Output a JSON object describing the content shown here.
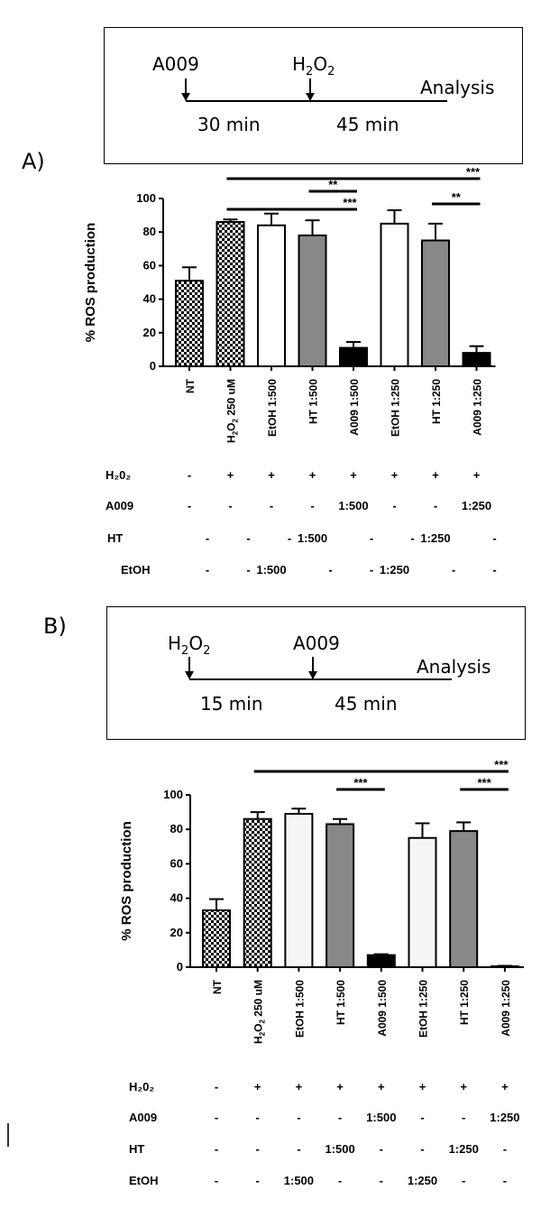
{
  "panels": [
    {
      "letter": "A)",
      "timeline": {
        "first_agent": "A009",
        "second_agent_base": "H",
        "second_agent_sub": "2",
        "second_agent_mid": "O",
        "second_agent_sub2": "2",
        "interval1": "30 min",
        "interval2": "45 min",
        "end_label": "Analysis"
      },
      "chart_data": {
        "type": "bar",
        "ylabel": "% ROS production",
        "ylim": [
          0,
          100
        ],
        "yticks": [
          0,
          20,
          40,
          60,
          80,
          100
        ],
        "categories": [
          "NT",
          "H2O2 250 uM",
          "EtOH 1:500",
          "HT 1:500",
          "A009 1:500",
          "EtOH 1:250",
          "HT 1:250",
          "A009 1:250"
        ],
        "values": [
          51,
          86,
          84,
          78,
          11,
          85,
          75,
          8
        ],
        "errors": [
          8,
          1.5,
          7,
          9,
          3.5,
          8,
          10,
          4
        ],
        "fills": [
          "check",
          "check",
          "#ffffff",
          "#888888",
          "#000000",
          "#ffffff",
          "#888888",
          "#000000"
        ],
        "significance": [
          {
            "from": 1,
            "to": 7,
            "label": "***"
          },
          {
            "from": 3,
            "to": 4,
            "label": "**"
          },
          {
            "from": 1,
            "to": 4,
            "label": "***"
          },
          {
            "from": 6,
            "to": 7,
            "label": "**"
          }
        ]
      },
      "conditions": [
        {
          "label": "H₂0₂",
          "values": [
            "-",
            "+",
            "+",
            "+",
            "+",
            "+",
            "+",
            "+"
          ]
        },
        {
          "label": "A009",
          "values": [
            "-",
            "-",
            "-",
            "-",
            "1:500",
            "-",
            "-",
            "1:250"
          ]
        },
        {
          "label": "HT",
          "values": [
            "-",
            "-",
            "-",
            "1:500",
            "-",
            "-",
            "1:250",
            "-"
          ]
        },
        {
          "label": "EtOH",
          "values": [
            "-",
            "-",
            "1:500",
            "-",
            "-",
            "1:250",
            "-",
            "-"
          ]
        }
      ]
    },
    {
      "letter": "B)",
      "timeline": {
        "first_agent_base": "H",
        "first_agent_sub": "2",
        "first_agent_mid": "O",
        "first_agent_sub2": "2",
        "second_agent": "A009",
        "interval1": "15 min",
        "interval2": "45 min",
        "end_label": "Analysis"
      },
      "chart_data": {
        "type": "bar",
        "ylabel": "% ROS production",
        "ylim": [
          0,
          100
        ],
        "yticks": [
          0,
          20,
          40,
          60,
          80,
          100
        ],
        "categories": [
          "NT",
          "H2O2 250 uM",
          "EtOH 1:500",
          "HT 1:500",
          "A009 1:500",
          "EtOH 1:250",
          "HT 1:250",
          "A009 1:250"
        ],
        "values": [
          33,
          86,
          89,
          83,
          7,
          75,
          79,
          0.5
        ],
        "errors": [
          6.5,
          4,
          3,
          3,
          0.5,
          8.5,
          5,
          0.3
        ],
        "fills": [
          "check",
          "check",
          "#f5f5f5",
          "#888888",
          "#000000",
          "#f5f5f5",
          "#888888",
          "#000000"
        ],
        "significance": [
          {
            "from": 1,
            "to": 7,
            "label": "***"
          },
          {
            "from": 3,
            "to": 4,
            "label": "***"
          },
          {
            "from": 6,
            "to": 7,
            "label": "***"
          }
        ]
      },
      "conditions": [
        {
          "label": "H₂0₂",
          "values": [
            "-",
            "+",
            "+",
            "+",
            "+",
            "+",
            "+",
            "+"
          ]
        },
        {
          "label": "A009",
          "values": [
            "-",
            "-",
            "-",
            "-",
            "1:500",
            "-",
            "-",
            "1:250"
          ]
        },
        {
          "label": "HT",
          "values": [
            "-",
            "-",
            "-",
            "1:500",
            "-",
            "-",
            "1:250",
            "-"
          ]
        },
        {
          "label": "EtOH",
          "values": [
            "-",
            "-",
            "1:500",
            "-",
            "-",
            "1:250",
            "-",
            "-"
          ]
        }
      ]
    }
  ]
}
